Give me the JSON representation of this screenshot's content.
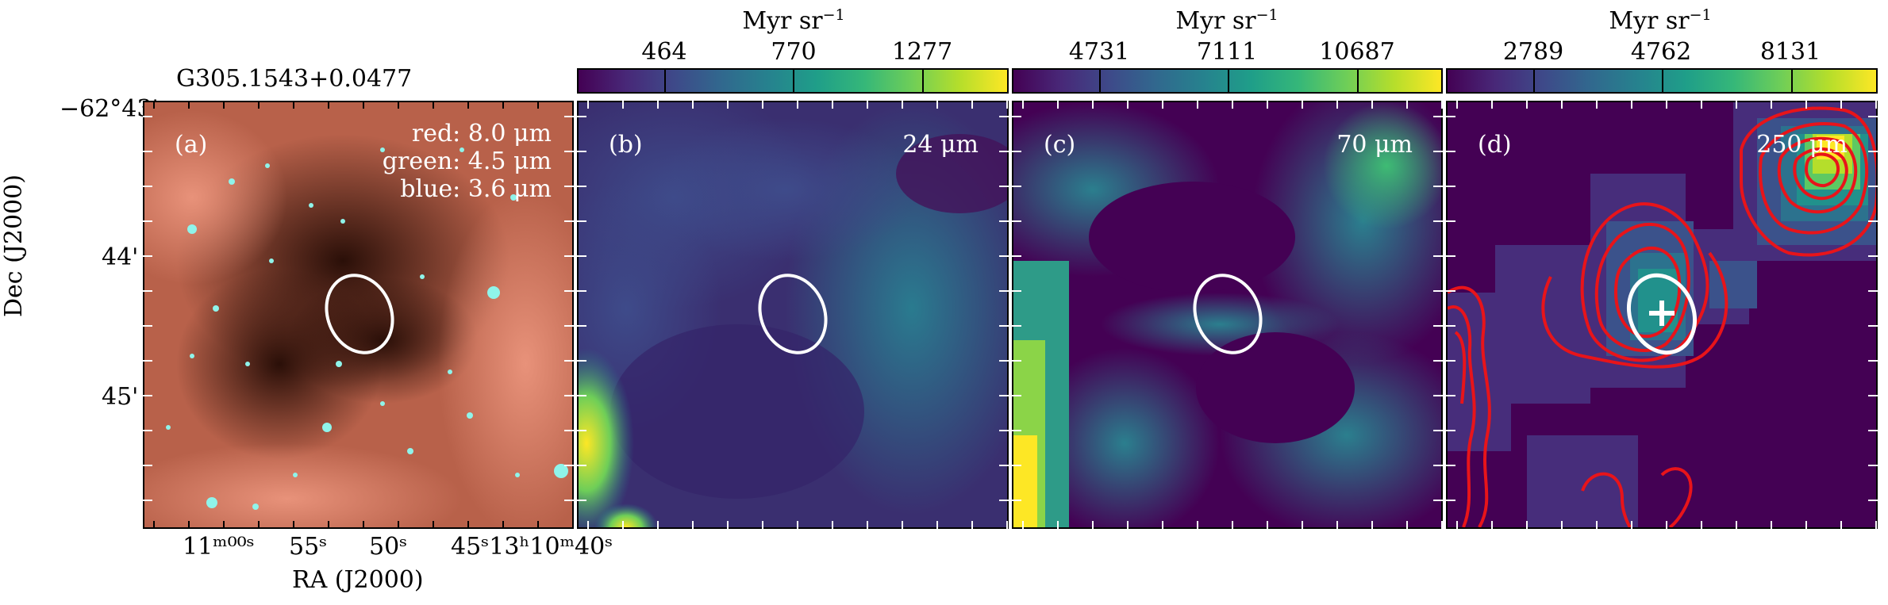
{
  "source_name": "G305.1543+0.0477",
  "axes": {
    "ylabel": "Dec (J2000)",
    "xlabel": "RA (J2000)",
    "dec_ticks": [
      "−62°43'",
      "44'",
      "45'"
    ],
    "ra_ticks": [
      "11ᵐ⁰⁰ˢ",
      "55ˢ",
      "50ˢ",
      "45ˢ13ʰ10ᵐ40ˢ"
    ]
  },
  "panels": [
    {
      "id": "a",
      "label": "(a)",
      "legend": [
        "red: 8.0 μm",
        "green: 4.5 μm",
        "blue: 3.6 μm"
      ]
    },
    {
      "id": "b",
      "label": "(b)",
      "band": "24 μm",
      "unit": "Myr sr",
      "unit_exp": "−1",
      "ticks": [
        "464",
        "770",
        "1277"
      ]
    },
    {
      "id": "c",
      "label": "(c)",
      "band": "70 μm",
      "unit": "Myr sr",
      "unit_exp": "−1",
      "ticks": [
        "4731",
        "7111",
        "10687"
      ]
    },
    {
      "id": "d",
      "label": "(d)",
      "band": "250 μm",
      "unit": "Myr sr",
      "unit_exp": "−1",
      "ticks": [
        "2789",
        "4762",
        "8131"
      ]
    }
  ],
  "colors": {
    "ellipse": "#ffffff",
    "contour": "#e8141a",
    "marker": "#ffffff"
  }
}
